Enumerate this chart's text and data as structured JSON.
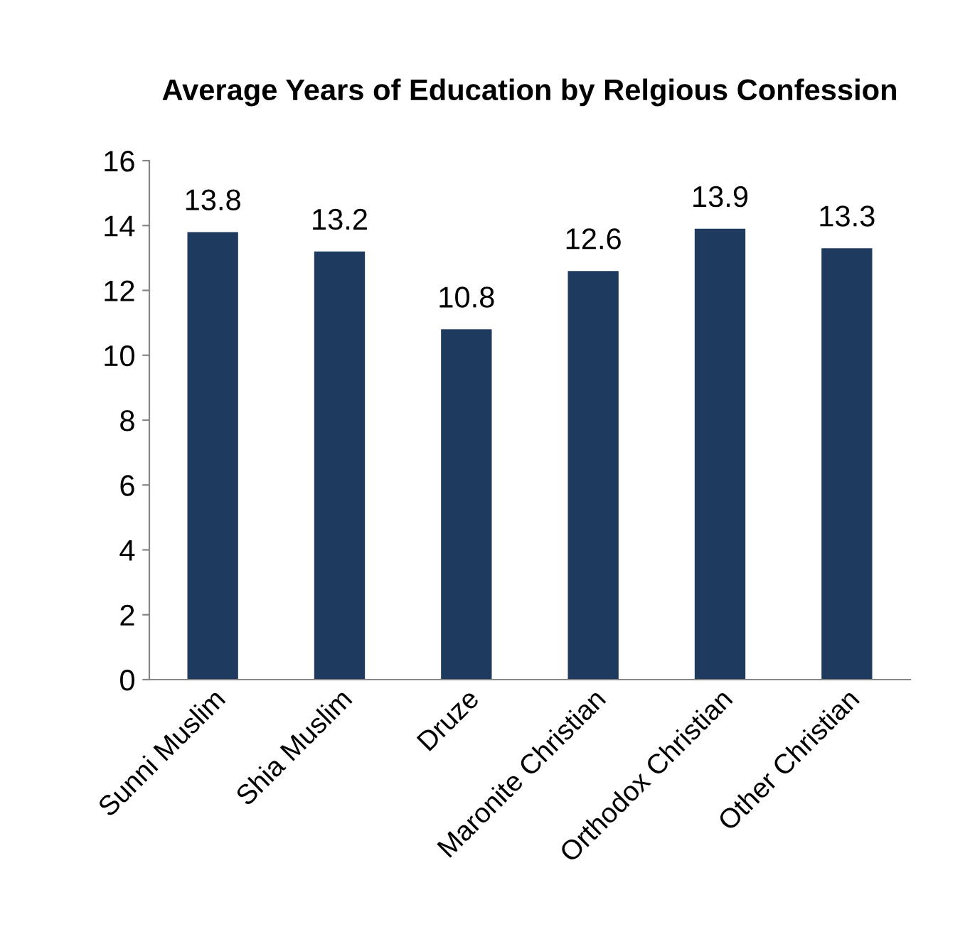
{
  "chart_data": {
    "type": "bar",
    "title": "Average Years of Education by Relgious Confession",
    "categories": [
      "Sunni Muslim",
      "Shia Muslim",
      "Druze",
      "Maronite Christian",
      "Orthodox Christian",
      "Other Christian"
    ],
    "values": [
      13.8,
      13.2,
      10.8,
      12.6,
      13.9,
      13.3
    ],
    "color": "#1f3a5f",
    "ylim": [
      0,
      16
    ],
    "yticks": [
      0,
      2,
      4,
      6,
      8,
      10,
      12,
      14,
      16
    ],
    "data_labels": true,
    "grid": false,
    "legend": false
  }
}
